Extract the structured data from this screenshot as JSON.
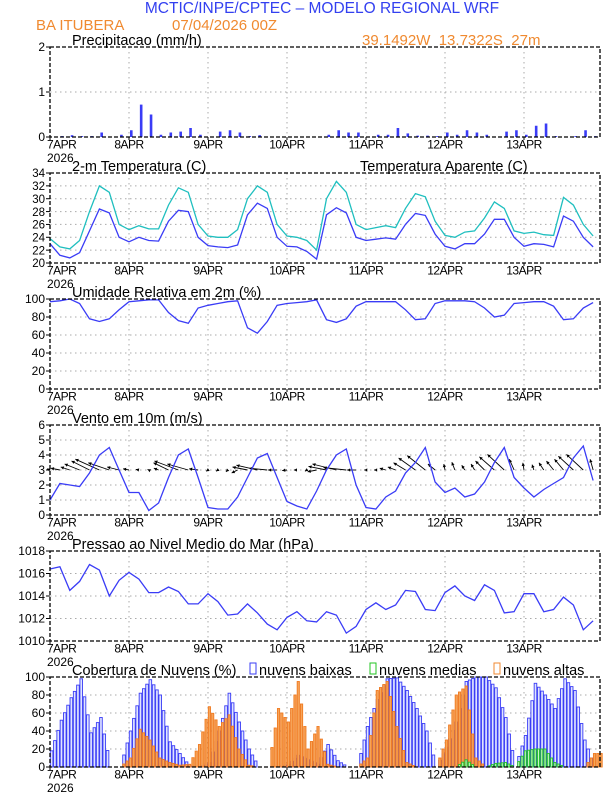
{
  "header": {
    "title": "MCTIC/INPE/CPTEC – MODELO REGIONAL WRF",
    "station": "BA ITUBERA",
    "run": "07/04/2026 00Z",
    "location": "39.1492W  13.7322S  27m"
  },
  "colors": {
    "title": "#3340f0",
    "orange": "#f08a30",
    "blue": "#3a3cf6",
    "cyan": "#1fbfbf",
    "green": "#22c422",
    "grid": "#aaaaaa"
  },
  "x_axis": {
    "labels": [
      "7APR",
      "8APR",
      "9APR",
      "10APR",
      "11APR",
      "12APR",
      "13APR"
    ],
    "year": "2026",
    "step_hours": 3
  },
  "chart_data": [
    {
      "id": "precip",
      "type": "bar",
      "title": "Precipitacao (mm/h)",
      "ylim": [
        0,
        2
      ],
      "yticks": [
        "0",
        "1",
        "2"
      ],
      "series": [
        {
          "name": "Precipitacao",
          "values": [
            0,
            0.02,
            0.04,
            0.02,
            0.02,
            0.1,
            0,
            0.05,
            0.15,
            0.72,
            0.5,
            0.05,
            0.1,
            0.12,
            0.2,
            0.05,
            0,
            0.12,
            0.15,
            0.1,
            0.02,
            0.04,
            0,
            0,
            0,
            0,
            0,
            0,
            0.05,
            0.15,
            0.1,
            0.1,
            0,
            0.05,
            0.05,
            0.2,
            0.08,
            0.03,
            0.03,
            0.02,
            0.1,
            0.05,
            0.15,
            0.1,
            0.05,
            0,
            0.12,
            0.15,
            0.05,
            0.25,
            0.3,
            0.02,
            0.01,
            0.02,
            0.15,
            0.02
          ]
        }
      ]
    },
    {
      "id": "temp",
      "type": "line",
      "title": "2-m Temperatura (C)",
      "ylim": [
        20,
        34
      ],
      "yticks": [
        "20",
        "22",
        "24",
        "26",
        "28",
        "30",
        "32",
        "34"
      ],
      "series": [
        {
          "name": "2-m Temperatura (C)",
          "values": [
            23,
            21.2,
            20.8,
            21.6,
            25,
            28.4,
            27.8,
            24,
            23.3,
            24,
            23.5,
            23.4,
            26.5,
            28.2,
            28,
            24,
            22.7,
            22.5,
            22.4,
            22.8,
            27.5,
            29.3,
            28.5,
            24,
            22.6,
            22.5,
            21.8,
            20.6,
            27.5,
            28.6,
            27.8,
            24,
            23.5,
            23.7,
            23.9,
            23.7,
            26,
            27.7,
            27.4,
            24.5,
            22.6,
            22.2,
            23,
            23,
            24.5,
            26.8,
            26.8,
            24,
            22.6,
            23,
            22.9,
            22.5,
            27.3,
            26.5,
            24,
            22.5
          ]
        },
        {
          "name": "Temperatura Aparente (C)",
          "values": [
            23.8,
            22.5,
            22.2,
            23.5,
            28,
            32,
            31,
            26,
            25.2,
            25.8,
            25.3,
            25.3,
            29,
            31.7,
            31,
            26,
            24.2,
            24,
            24,
            25.2,
            30,
            32,
            31,
            26,
            24.2,
            24,
            23.5,
            22,
            30,
            32.7,
            31,
            26,
            25.2,
            25.5,
            25.8,
            25.5,
            28.5,
            30.8,
            30.3,
            26.5,
            24.3,
            24,
            24.8,
            25,
            27,
            29.5,
            28.5,
            25,
            24.6,
            24.8,
            24.4,
            24.3,
            30.2,
            29,
            26,
            24.2
          ]
        }
      ]
    },
    {
      "id": "rh",
      "type": "line",
      "title": "Umidade Relativa em 2m (%)",
      "ylim": [
        0,
        100
      ],
      "yticks": [
        "0",
        "20",
        "40",
        "60",
        "80",
        "100"
      ],
      "series": [
        {
          "name": "Umidade Relativa",
          "values": [
            97,
            98,
            100,
            95,
            78,
            75,
            78,
            88,
            97,
            98,
            99,
            99,
            85,
            76,
            73,
            90,
            93,
            95,
            97,
            98,
            68,
            62,
            75,
            93,
            95,
            96,
            97,
            99,
            77,
            74,
            78,
            92,
            97,
            97,
            97,
            97,
            88,
            77,
            78,
            95,
            98,
            98,
            98,
            97,
            90,
            80,
            82,
            95,
            96,
            97,
            97,
            92,
            77,
            78,
            90,
            96
          ]
        }
      ]
    },
    {
      "id": "wind",
      "type": "line",
      "title": "Vento em 10m (m/s)",
      "ylim": [
        0,
        6
      ],
      "yticks": [
        "0",
        "1",
        "2",
        "3",
        "4",
        "5",
        "6"
      ],
      "series": [
        {
          "name": "Velocidade",
          "values": [
            1.0,
            2.1,
            2.0,
            1.9,
            2.8,
            4.0,
            4.5,
            3.0,
            1.5,
            1.5,
            0.3,
            0.8,
            2.5,
            4.0,
            4.4,
            2.5,
            0.5,
            0.4,
            0.4,
            1.2,
            2.5,
            3.8,
            4.1,
            2.5,
            0.9,
            0.6,
            0.4,
            1.6,
            3.0,
            4.0,
            4.4,
            2.0,
            0.5,
            0.4,
            1.2,
            1.6,
            2.8,
            3.5,
            4.5,
            2.2,
            1.5,
            1.8,
            1.2,
            1.4,
            2.2,
            3.5,
            4.5,
            2.5,
            1.8,
            1.2,
            1.7,
            2.1,
            2.5,
            3.8,
            4.6,
            2.3
          ]
        }
      ],
      "vectors": {
        "u": [
          -0.5,
          -1.5,
          -1.5,
          -2.5,
          -3,
          -4,
          -3.5,
          -2,
          -1,
          -0.5,
          -0.2,
          -0.8,
          -2.5,
          -4,
          -3.5,
          -1.5,
          -0.3,
          -0.3,
          -0.3,
          -1,
          -2.5,
          -3.5,
          -3,
          -1.5,
          -0.8,
          -0.5,
          -0.3,
          -1.5,
          -3,
          -4,
          -3.8,
          -1.5,
          -0.3,
          -0.3,
          -1,
          -1.3,
          -2,
          -2.8,
          -3,
          -1.2,
          -0.2,
          -0.5,
          -0.5,
          -0.6,
          -1.5,
          -2.5,
          -2.8,
          -0.8,
          -0.2,
          -0.3,
          -0.8,
          -1.2,
          -1.5,
          -2.5,
          -2.8,
          -0.5
        ],
        "v": [
          0.2,
          0.3,
          0.5,
          1,
          1.5,
          1.8,
          1.2,
          0.5,
          0.2,
          0.1,
          0.1,
          0.3,
          1.2,
          1.5,
          1,
          0.2,
          -0.2,
          -0.2,
          -0.3,
          -0.5,
          0.5,
          0.8,
          0.3,
          0,
          -0.1,
          0,
          -0.2,
          -0.3,
          0.6,
          1,
          0.4,
          0,
          0,
          0,
          0.3,
          0.5,
          1.2,
          2,
          2.4,
          1,
          1,
          1.3,
          0.8,
          1,
          1.5,
          2.2,
          2.6,
          1.8,
          1.2,
          0.9,
          1.2,
          1.5,
          1.8,
          2.3,
          2.6,
          1.8
        ],
        "baseline": 3
      }
    },
    {
      "id": "pressure",
      "type": "line",
      "title": "Pressao ao Nivel Medio do Mar (hPa)",
      "ylim": [
        1010,
        1018
      ],
      "yticks": [
        "1010",
        "1012",
        "1014",
        "1016",
        "1018"
      ],
      "series": [
        {
          "name": "Pressao",
          "values": [
            1016.4,
            1016.6,
            1014.5,
            1015.3,
            1016.8,
            1016.3,
            1014.0,
            1015.4,
            1016.1,
            1015.5,
            1014.3,
            1014.3,
            1014.8,
            1014.4,
            1013.3,
            1013.3,
            1014.2,
            1013.5,
            1012.3,
            1012.4,
            1013.3,
            1012.5,
            1011.5,
            1011.0,
            1012.1,
            1012.6,
            1011.8,
            1011.7,
            1012.6,
            1012.3,
            1010.7,
            1011.3,
            1012.8,
            1013.4,
            1012.8,
            1013.2,
            1014.5,
            1014.4,
            1012.8,
            1012.7,
            1014.3,
            1014.9,
            1014.0,
            1013.6,
            1015.0,
            1014.5,
            1012.5,
            1012.6,
            1014.2,
            1014.2,
            1012.6,
            1012.8,
            1013.9,
            1013.2,
            1011.0,
            1011.8
          ]
        }
      ]
    },
    {
      "id": "clouds",
      "type": "bar",
      "title": "Cobertura de Nuvens (%)",
      "ylim": [
        0,
        100
      ],
      "yticks": [
        "0",
        "20",
        "40",
        "60",
        "80",
        "100"
      ],
      "series": [
        {
          "name": "nuvens baixas",
          "values": [
            18,
            52,
            77,
            98,
            38,
            55,
            0,
            0,
            40,
            82,
            97,
            80,
            28,
            15,
            1,
            0,
            5,
            40,
            82,
            50,
            20,
            0,
            0,
            0,
            3,
            13,
            8,
            3,
            25,
            7,
            0,
            0,
            45,
            75,
            98,
            99,
            85,
            65,
            40,
            0,
            22,
            50,
            95,
            100,
            100,
            88,
            55,
            0,
            35,
            93,
            80,
            65,
            98,
            85,
            30,
            0
          ]
        },
        {
          "name": "nuvens medias",
          "values": [
            0,
            0,
            0,
            0,
            0,
            0,
            0,
            0,
            0,
            0,
            0,
            0,
            0,
            0,
            0,
            0,
            0,
            0,
            0,
            0,
            0,
            0,
            0,
            0,
            0,
            0,
            0,
            0,
            0,
            0,
            0,
            0,
            0,
            0,
            0,
            0,
            0,
            0,
            0,
            0,
            0,
            0,
            8,
            0,
            0,
            4,
            5,
            0,
            18,
            20,
            20,
            5,
            0,
            0,
            0,
            0
          ]
        },
        {
          "name": "nuvens altas",
          "values": [
            0,
            0,
            0,
            0,
            0,
            0,
            0,
            0,
            10,
            42,
            30,
            10,
            5,
            2,
            3,
            25,
            67,
            45,
            58,
            20,
            2,
            0,
            0,
            65,
            50,
            95,
            20,
            45,
            3,
            0,
            0,
            0,
            10,
            85,
            95,
            45,
            5,
            0,
            0,
            0,
            30,
            80,
            90,
            10,
            0,
            0,
            0,
            0,
            0,
            0,
            0,
            0,
            0,
            0,
            0,
            15
          ]
        }
      ]
    }
  ]
}
